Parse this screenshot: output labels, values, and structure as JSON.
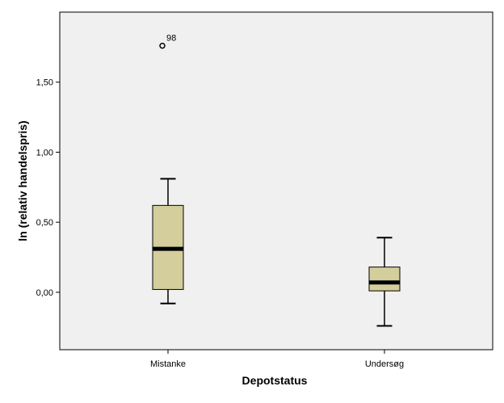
{
  "chart_data": {
    "type": "boxplot",
    "title": "",
    "xlabel": "Depotstatus",
    "ylabel": "ln (relativ handelspris)",
    "ylim": [
      -0.41,
      2.0
    ],
    "yticks": [
      {
        "value": 0.0,
        "label": "0,00"
      },
      {
        "value": 0.5,
        "label": "0,50"
      },
      {
        "value": 1.0,
        "label": "1,00"
      },
      {
        "value": 1.5,
        "label": "1,50"
      }
    ],
    "grid": false,
    "colors": {
      "plot_background": "#f0f0f0",
      "box_fill": "#d3ce9b",
      "stroke": "#000000"
    },
    "categories": [
      "Mistanke",
      "Undersøg"
    ],
    "boxes": [
      {
        "category": "Mistanke",
        "whisker_low": -0.08,
        "q1": 0.02,
        "median": 0.31,
        "q3": 0.62,
        "whisker_high": 0.81,
        "outliers": [
          {
            "value": 1.76,
            "label": "98"
          }
        ]
      },
      {
        "category": "Undersøg",
        "whisker_low": -0.24,
        "q1": 0.01,
        "median": 0.07,
        "q3": 0.18,
        "whisker_high": 0.39,
        "outliers": []
      }
    ]
  }
}
